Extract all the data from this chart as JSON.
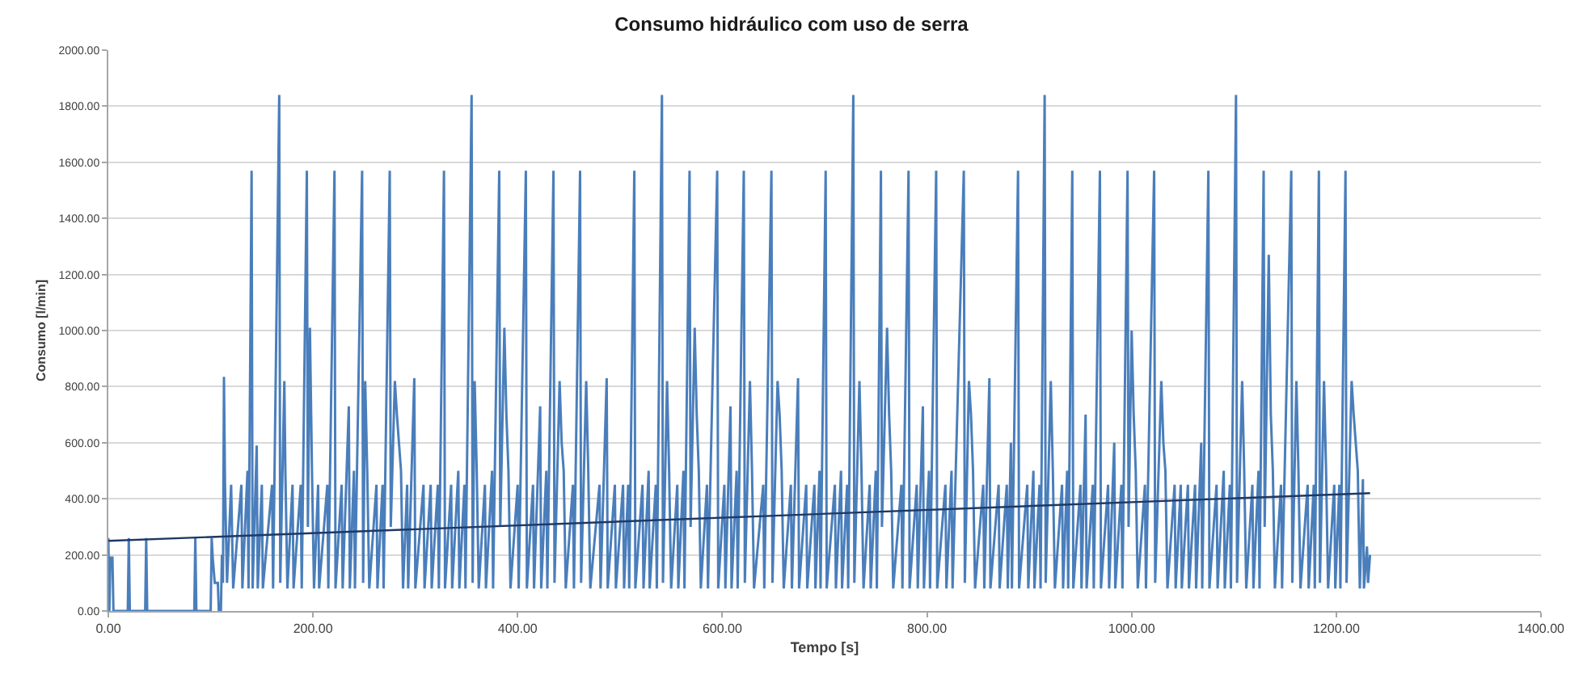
{
  "chart_data": {
    "type": "line",
    "title": "Consumo hidráulico com uso de serra",
    "xlabel": "Tempo [s]",
    "ylabel": "Consumo [l/min]",
    "xlim": [
      0,
      1400
    ],
    "ylim": [
      0,
      2000
    ],
    "xticks": [
      {
        "value": 0,
        "label": "0.00"
      },
      {
        "value": 200,
        "label": "200.00"
      },
      {
        "value": 400,
        "label": "400.00"
      },
      {
        "value": 600,
        "label": "600.00"
      },
      {
        "value": 800,
        "label": "800.00"
      },
      {
        "value": 1000,
        "label": "1000.00"
      },
      {
        "value": 1200,
        "label": "1200.00"
      },
      {
        "value": 1400,
        "label": "1400.00"
      }
    ],
    "yticks": [
      {
        "value": 0,
        "label": "0.00"
      },
      {
        "value": 200,
        "label": "200.00"
      },
      {
        "value": 400,
        "label": "400.00"
      },
      {
        "value": 600,
        "label": "600.00"
      },
      {
        "value": 800,
        "label": "800.00"
      },
      {
        "value": 1000,
        "label": "1000.00"
      },
      {
        "value": 1200,
        "label": "1200.00"
      },
      {
        "value": 1400,
        "label": "1400.00"
      },
      {
        "value": 1600,
        "label": "1600.00"
      },
      {
        "value": 1800,
        "label": "1800.00"
      },
      {
        "value": 2000,
        "label": "2000.00"
      }
    ],
    "grid": "y",
    "series": [
      {
        "color": "#4a7ebb",
        "x": [
          0,
          1,
          2,
          4,
          5,
          19,
          20,
          21,
          36,
          37,
          38,
          84,
          85,
          86,
          100,
          101,
          102,
          104,
          107,
          108,
          110,
          111,
          112,
          113,
          114,
          116,
          120,
          122,
          130,
          131,
          136,
          137,
          140,
          141,
          145,
          146,
          150,
          151,
          160,
          161,
          167,
          168,
          172,
          173,
          175,
          180,
          181,
          188,
          189,
          194,
          195,
          197,
          199,
          201,
          205,
          206,
          214,
          215,
          221,
          222,
          228,
          229,
          235,
          236,
          240,
          241,
          248,
          249,
          251,
          253,
          255,
          262,
          263,
          268,
          269,
          275,
          276,
          280,
          282,
          284,
          286,
          288,
          292,
          293,
          299,
          300,
          308,
          309,
          315,
          316,
          322,
          323,
          328,
          329,
          335,
          336,
          342,
          343,
          348,
          349,
          355,
          356,
          358,
          360,
          362,
          368,
          369,
          375,
          376,
          382,
          383,
          387,
          389,
          391,
          393,
          400,
          401,
          408,
          409,
          415,
          416,
          422,
          423,
          428,
          429,
          435,
          436,
          441,
          443,
          445,
          447,
          454,
          455,
          461,
          462,
          467,
          469,
          471,
          480,
          481,
          487,
          488,
          495,
          496,
          503,
          504,
          508,
          509,
          514,
          515,
          522,
          523,
          528,
          529,
          535,
          536,
          541,
          542,
          546,
          548,
          550,
          556,
          557,
          562,
          563,
          568,
          569,
          573,
          575,
          577,
          579,
          585,
          586,
          595,
          596,
          602,
          603,
          608,
          609,
          614,
          615,
          621,
          622,
          627,
          629,
          631,
          640,
          641,
          648,
          649,
          654,
          656,
          658,
          660,
          667,
          668,
          674,
          675,
          682,
          683,
          690,
          691,
          695,
          696,
          701,
          702,
          710,
          711,
          716,
          717,
          722,
          723,
          728,
          729,
          734,
          736,
          738,
          744,
          745,
          750,
          751,
          755,
          756,
          761,
          763,
          765,
          767,
          775,
          776,
          782,
          783,
          790,
          791,
          796,
          797,
          802,
          803,
          809,
          810,
          818,
          819,
          824,
          825,
          836,
          837,
          841,
          843,
          845,
          847,
          855,
          856,
          861,
          862,
          870,
          871,
          878,
          879,
          882,
          883,
          889,
          890,
          898,
          899,
          904,
          905,
          910,
          911,
          915,
          916,
          921,
          923,
          925,
          932,
          933,
          937,
          938,
          942,
          943,
          950,
          951,
          955,
          956,
          962,
          963,
          969,
          970,
          977,
          978,
          983,
          984,
          990,
          991,
          996,
          997,
          1000,
          1002,
          1004,
          1006,
          1013,
          1014,
          1022,
          1023,
          1029,
          1031,
          1033,
          1035,
          1042,
          1043,
          1048,
          1049,
          1055,
          1056,
          1062,
          1063,
          1068,
          1069,
          1075,
          1076,
          1083,
          1084,
          1090,
          1091,
          1096,
          1097,
          1102,
          1103,
          1108,
          1110,
          1112,
          1118,
          1119,
          1124,
          1125,
          1129,
          1130,
          1134,
          1136,
          1138,
          1140,
          1146,
          1147,
          1156,
          1157,
          1161,
          1163,
          1165,
          1172,
          1173,
          1178,
          1179,
          1183,
          1184,
          1188,
          1190,
          1192,
          1198,
          1199,
          1203,
          1204,
          1209,
          1210,
          1215,
          1217,
          1219,
          1221,
          1223,
          1226,
          1227,
          1230,
          1231,
          1233
        ],
        "values": [
          260,
          0,
          190,
          190,
          0,
          0,
          260,
          0,
          0,
          260,
          0,
          0,
          260,
          0,
          0,
          260,
          190,
          100,
          100,
          0,
          0,
          200,
          100,
          835,
          450,
          100,
          450,
          80,
          450,
          80,
          500,
          80,
          1570,
          80,
          590,
          80,
          450,
          80,
          450,
          80,
          1840,
          100,
          820,
          500,
          80,
          450,
          80,
          450,
          80,
          1570,
          300,
          1010,
          500,
          80,
          450,
          80,
          450,
          80,
          1570,
          80,
          450,
          80,
          730,
          80,
          500,
          80,
          1570,
          100,
          820,
          500,
          80,
          450,
          80,
          450,
          80,
          1570,
          300,
          820,
          700,
          600,
          500,
          80,
          450,
          80,
          830,
          80,
          450,
          80,
          450,
          80,
          450,
          80,
          1570,
          80,
          450,
          80,
          500,
          80,
          450,
          80,
          1840,
          100,
          820,
          500,
          80,
          450,
          80,
          500,
          80,
          1570,
          300,
          1010,
          700,
          500,
          80,
          450,
          80,
          1570,
          80,
          450,
          80,
          730,
          80,
          500,
          80,
          1570,
          100,
          820,
          600,
          500,
          80,
          450,
          80,
          1570,
          100,
          820,
          500,
          80,
          450,
          80,
          830,
          80,
          450,
          80,
          450,
          80,
          450,
          80,
          1570,
          80,
          450,
          80,
          500,
          80,
          450,
          80,
          1840,
          100,
          820,
          500,
          80,
          450,
          80,
          500,
          80,
          1570,
          300,
          1010,
          700,
          500,
          80,
          450,
          80,
          1570,
          80,
          450,
          80,
          730,
          80,
          500,
          80,
          1570,
          100,
          820,
          500,
          80,
          450,
          80,
          1570,
          100,
          820,
          700,
          500,
          80,
          450,
          80,
          830,
          80,
          450,
          80,
          450,
          80,
          500,
          80,
          1570,
          80,
          450,
          80,
          500,
          80,
          450,
          80,
          1840,
          100,
          820,
          500,
          80,
          450,
          80,
          500,
          80,
          1570,
          300,
          1010,
          700,
          500,
          80,
          450,
          80,
          1570,
          80,
          450,
          80,
          730,
          80,
          500,
          80,
          1570,
          80,
          450,
          80,
          500,
          80,
          1570,
          100,
          820,
          700,
          500,
          80,
          450,
          80,
          830,
          80,
          450,
          80,
          450,
          80,
          600,
          80,
          1570,
          80,
          450,
          80,
          500,
          80,
          450,
          80,
          1840,
          100,
          820,
          500,
          80,
          450,
          80,
          500,
          80,
          1570,
          80,
          450,
          80,
          700,
          80,
          450,
          80,
          1570,
          80,
          450,
          80,
          600,
          80,
          450,
          80,
          1570,
          300,
          1000,
          700,
          500,
          80,
          450,
          80,
          1570,
          100,
          820,
          600,
          500,
          80,
          450,
          80,
          450,
          80,
          450,
          80,
          450,
          80,
          600,
          80,
          1570,
          80,
          450,
          80,
          500,
          80,
          450,
          80,
          1840,
          100,
          820,
          500,
          80,
          450,
          80,
          500,
          80,
          1570,
          300,
          1270,
          700,
          500,
          80,
          450,
          80,
          1570,
          100,
          820,
          500,
          80,
          450,
          80,
          450,
          80,
          1570,
          100,
          820,
          500,
          80,
          450,
          80,
          450,
          80,
          1570,
          100,
          820,
          700,
          600,
          500,
          80,
          470,
          80,
          230,
          100,
          200
        ]
      },
      {
        "color": "#1f3864",
        "x": [
          0,
          1233
        ],
        "values": [
          250,
          420
        ]
      }
    ]
  }
}
